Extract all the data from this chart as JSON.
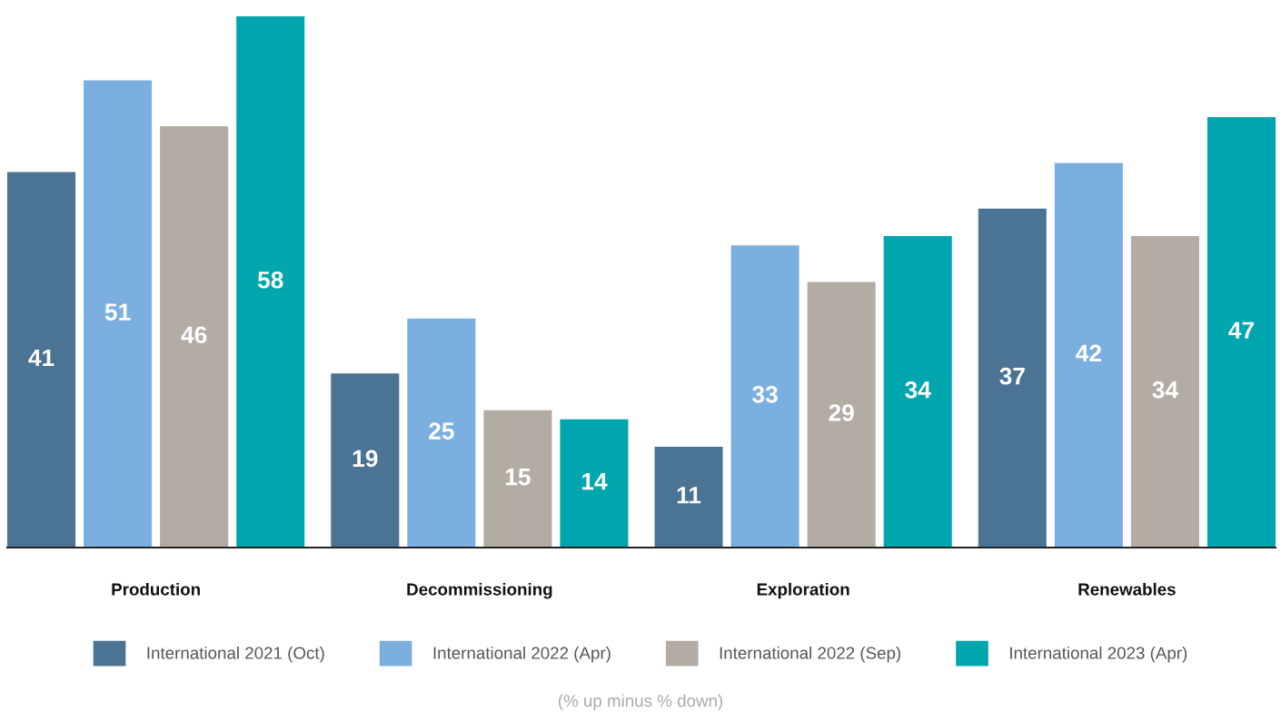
{
  "chart_data": {
    "type": "bar",
    "categories": [
      "Production",
      "Decommissioning",
      "Exploration",
      "Renewables"
    ],
    "series": [
      {
        "name": "International 2021 (Oct)",
        "color": "#4a7394",
        "values": [
          41,
          19,
          11,
          37
        ]
      },
      {
        "name": "International 2022 (Apr)",
        "color": "#7aafe0",
        "values": [
          51,
          25,
          33,
          42
        ]
      },
      {
        "name": "International 2022 (Sep)",
        "color": "#b3aca5",
        "values": [
          46,
          15,
          29,
          34
        ]
      },
      {
        "name": "International 2023 (Apr)",
        "color": "#00a6ad",
        "values": [
          58,
          14,
          34,
          47
        ]
      }
    ],
    "data_labels": true,
    "legend": "bottom",
    "grid": false,
    "annotations": [
      "(% up minus % down)"
    ]
  }
}
